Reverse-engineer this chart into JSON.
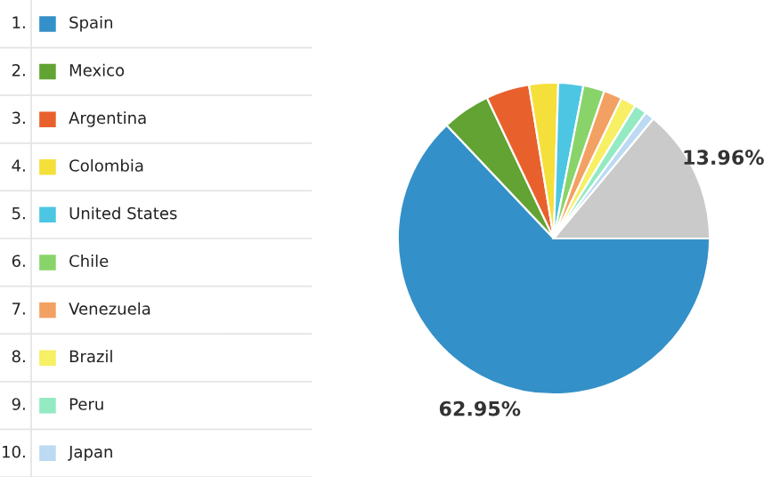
{
  "chart_data": {
    "type": "pie",
    "categories": [
      "Spain",
      "Mexico",
      "Argentina",
      "Colombia",
      "United States",
      "Chile",
      "Venezuela",
      "Brazil",
      "Peru",
      "Japan",
      null
    ],
    "values": [
      62.95,
      5.0,
      4.5,
      3.0,
      2.6,
      2.2,
      1.9,
      1.6,
      1.3,
      0.99,
      13.96
    ],
    "colors": [
      "#3490c8",
      "#62a334",
      "#e8612c",
      "#f5df3a",
      "#4cc6e2",
      "#88d46a",
      "#f3a163",
      "#f7ef64",
      "#93eac3",
      "#bcdaf2",
      "#cacaca"
    ],
    "value_labels": [
      "62.95%",
      null,
      null,
      null,
      null,
      null,
      null,
      null,
      null,
      null,
      "13.96%"
    ],
    "annotations": [
      "1.",
      "2.",
      "3.",
      "4.",
      "5.",
      "6.",
      "7.",
      "8.",
      "9.",
      "10."
    ],
    "legend": "left"
  }
}
